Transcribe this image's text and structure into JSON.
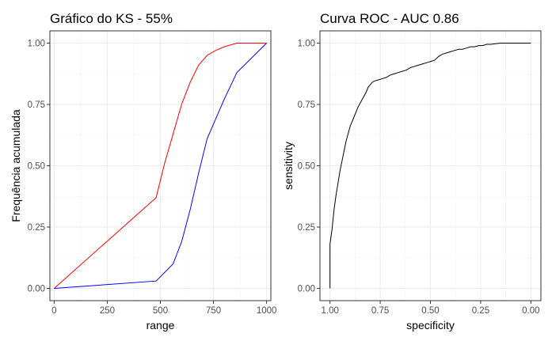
{
  "chart_data": [
    {
      "type": "line",
      "title": "Gráfico do KS - 55%",
      "xlabel": "range",
      "ylabel": "Frequência acumulada",
      "xlim": [
        -20,
        1020
      ],
      "ylim": [
        -0.05,
        1.05
      ],
      "x_ticks": [
        0,
        250,
        500,
        750,
        1000
      ],
      "x_tick_labels": [
        "0",
        "250",
        "500",
        "750",
        "1000"
      ],
      "y_ticks": [
        0,
        0.25,
        0.5,
        0.75,
        1
      ],
      "y_tick_labels": [
        "0.00",
        "0.25",
        "0.50",
        "0.75",
        "1.00"
      ],
      "grid": true,
      "legend": "none",
      "colors": {
        "red": "#ff0000",
        "blue": "#0000ff"
      },
      "series": [
        {
          "color": "#ff0000",
          "x": [
            0,
            480,
            520,
            560,
            600,
            640,
            680,
            720,
            760,
            800,
            860,
            1000
          ],
          "y": [
            0,
            0.37,
            0.51,
            0.63,
            0.75,
            0.84,
            0.91,
            0.95,
            0.97,
            0.985,
            1.0,
            1.0
          ]
        },
        {
          "color": "#0000ff",
          "x": [
            0,
            480,
            560,
            600,
            640,
            680,
            720,
            760,
            800,
            860,
            1000
          ],
          "y": [
            0,
            0.03,
            0.1,
            0.19,
            0.32,
            0.47,
            0.61,
            0.69,
            0.77,
            0.88,
            1.0
          ]
        }
      ]
    },
    {
      "type": "line",
      "title": "Curva ROC - AUC 0.86",
      "xlabel": "specificity",
      "ylabel": "sensitivity",
      "x_reversed": true,
      "xlim": [
        1.05,
        -0.05
      ],
      "ylim": [
        -0.05,
        1.05
      ],
      "x_ticks": [
        1,
        0.75,
        0.5,
        0.25,
        0
      ],
      "x_tick_labels": [
        "1.00",
        "0.75",
        "0.50",
        "0.25",
        "0.00"
      ],
      "y_ticks": [
        0,
        0.25,
        0.5,
        0.75,
        1
      ],
      "y_tick_labels": [
        "0.00",
        "0.25",
        "0.50",
        "0.75",
        "1.00"
      ],
      "grid": true,
      "legend": "none",
      "colors": {
        "curve": "#000000"
      },
      "series": [
        {
          "color": "#000000",
          "x": [
            1.0,
            1.0,
            0.99,
            0.98,
            0.97,
            0.96,
            0.95,
            0.94,
            0.93,
            0.92,
            0.91,
            0.9,
            0.89,
            0.88,
            0.87,
            0.86,
            0.85,
            0.84,
            0.83,
            0.82,
            0.81,
            0.8,
            0.79,
            0.78,
            0.76,
            0.74,
            0.72,
            0.7,
            0.68,
            0.66,
            0.64,
            0.62,
            0.6,
            0.58,
            0.56,
            0.54,
            0.52,
            0.5,
            0.48,
            0.46,
            0.44,
            0.42,
            0.4,
            0.38,
            0.36,
            0.34,
            0.32,
            0.3,
            0.28,
            0.26,
            0.24,
            0.22,
            0.2,
            0.18,
            0.15,
            0.1,
            0.05,
            0.0
          ],
          "y": [
            0.0,
            0.18,
            0.24,
            0.32,
            0.38,
            0.43,
            0.48,
            0.52,
            0.56,
            0.6,
            0.63,
            0.66,
            0.68,
            0.7,
            0.72,
            0.74,
            0.755,
            0.77,
            0.785,
            0.8,
            0.82,
            0.83,
            0.84,
            0.845,
            0.85,
            0.855,
            0.86,
            0.87,
            0.875,
            0.88,
            0.885,
            0.89,
            0.9,
            0.905,
            0.91,
            0.915,
            0.92,
            0.925,
            0.93,
            0.945,
            0.955,
            0.96,
            0.965,
            0.97,
            0.975,
            0.975,
            0.98,
            0.985,
            0.985,
            0.99,
            0.99,
            0.995,
            0.995,
            0.997,
            1.0,
            1.0,
            1.0,
            1.0
          ]
        }
      ]
    }
  ]
}
